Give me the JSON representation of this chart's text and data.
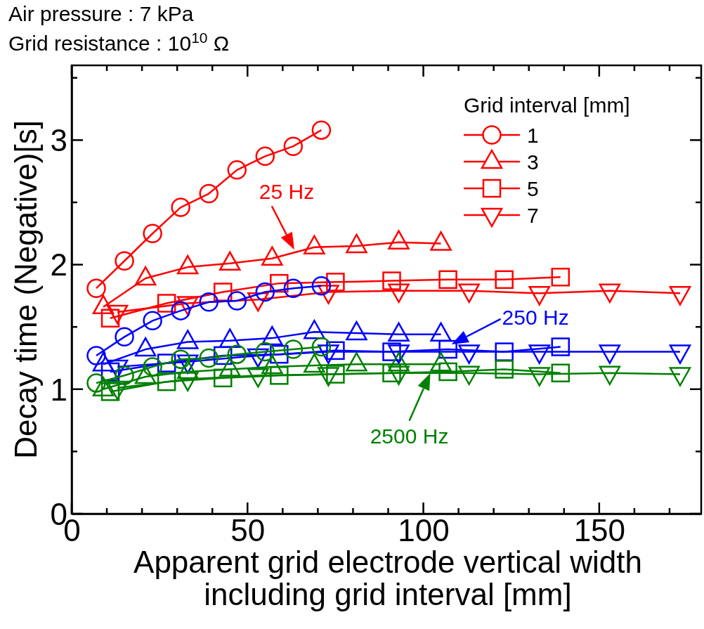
{
  "chart_data": {
    "type": "line",
    "title": "Air pressure : 7 kPa",
    "subtitle": "Grid resistance : 10$^{10}$ Ω",
    "xlabel": "Apparent grid electrode vertical width\nincluding grid interval [mm]",
    "ylabel": "Decay time (Negative)[s]",
    "legend_title": "Grid interval [mm]",
    "legend": "top right",
    "grid": false,
    "xlim": [
      0,
      179
    ],
    "ylim": [
      0,
      3.6
    ],
    "xticks": [
      0,
      {
        "value": 10,
        "label": null
      },
      {
        "value": 20,
        "label": null
      },
      {
        "value": 30,
        "label": null
      },
      {
        "value": 40,
        "label": null
      },
      50,
      {
        "value": 60,
        "label": null
      },
      {
        "value": 70,
        "label": null
      },
      {
        "value": 80,
        "label": null
      },
      {
        "value": 90,
        "label": null
      },
      100,
      {
        "value": 110,
        "label": null
      },
      {
        "value": 120,
        "label": null
      },
      {
        "value": 130,
        "label": null
      },
      {
        "value": 140,
        "label": null
      },
      150,
      {
        "value": 160,
        "label": null
      },
      {
        "value": 170,
        "label": null
      }
    ],
    "yticks": [
      0,
      {
        "value": 0.5,
        "label": null
      },
      1,
      {
        "value": 1.5,
        "label": null
      },
      2,
      {
        "value": 2.5,
        "label": null
      },
      3,
      {
        "value": 3.5,
        "label": null
      }
    ],
    "annotations": [
      {
        "text": "25 Hz",
        "x": 63.3,
        "y": 2.12
      },
      {
        "text": "250 Hz",
        "x": 108,
        "y": 1.36
      },
      {
        "text": "2500 Hz",
        "x": 102,
        "y": 1.13
      }
    ],
    "series": [
      {
        "name": "1",
        "color": "#ff0000",
        "marker": "circle",
        "x": [
          7,
          15,
          23,
          31,
          39,
          47,
          55,
          63,
          71
        ],
        "values": [
          1.81,
          2.03,
          2.25,
          2.46,
          2.57,
          2.76,
          2.87,
          2.95,
          3.08
        ]
      },
      {
        "name": "3",
        "color": "#ff0000",
        "marker": "triangle",
        "x": [
          9,
          21,
          33,
          45,
          57,
          69,
          81,
          93,
          105
        ],
        "values": [
          1.66,
          1.89,
          1.98,
          2.01,
          2.05,
          2.14,
          2.15,
          2.18,
          2.17
        ]
      },
      {
        "name": "5",
        "color": "#ff0000",
        "marker": "square",
        "x": [
          11,
          27,
          43,
          59,
          75,
          91,
          107,
          123,
          139
        ],
        "values": [
          1.57,
          1.69,
          1.78,
          1.85,
          1.86,
          1.87,
          1.88,
          1.88,
          1.9
        ]
      },
      {
        "name": "7",
        "color": "#ff0000",
        "marker": "triangle-down",
        "x": [
          13,
          33,
          53,
          73,
          93,
          113,
          133,
          153,
          173
        ],
        "values": [
          1.62,
          1.69,
          1.72,
          1.78,
          1.79,
          1.79,
          1.77,
          1.79,
          1.77
        ]
      },
      {
        "color": "#0000ff",
        "marker": "circle",
        "x": [
          7,
          15,
          23,
          31,
          39,
          47,
          55,
          63,
          71
        ],
        "values": [
          1.27,
          1.42,
          1.55,
          1.63,
          1.7,
          1.71,
          1.78,
          1.81,
          1.83
        ]
      },
      {
        "color": "#0000ff",
        "marker": "triangle",
        "x": [
          9,
          21,
          33,
          45,
          57,
          69,
          81,
          93,
          105
        ],
        "values": [
          1.2,
          1.32,
          1.38,
          1.39,
          1.41,
          1.46,
          1.45,
          1.44,
          1.44
        ]
      },
      {
        "color": "#0000ff",
        "marker": "square",
        "x": [
          11,
          27,
          43,
          59,
          75,
          91,
          107,
          123,
          139
        ],
        "values": [
          1.14,
          1.21,
          1.27,
          1.28,
          1.31,
          1.3,
          1.32,
          1.3,
          1.34
        ]
      },
      {
        "color": "#0000ff",
        "marker": "triangle-down",
        "x": [
          13,
          33,
          53,
          73,
          93,
          113,
          133,
          153,
          173
        ],
        "values": [
          1.18,
          1.22,
          1.27,
          1.3,
          1.3,
          1.3,
          1.3,
          1.3,
          1.3
        ]
      },
      {
        "color": "#008000",
        "marker": "circle",
        "x": [
          7,
          15,
          23,
          31,
          39,
          47,
          55,
          63,
          71
        ],
        "values": [
          1.05,
          1.11,
          1.18,
          1.24,
          1.25,
          1.28,
          1.3,
          1.32,
          1.34
        ]
      },
      {
        "color": "#008000",
        "marker": "triangle",
        "x": [
          9,
          21,
          33,
          45,
          57,
          69,
          81,
          93,
          105
        ],
        "values": [
          1.0,
          1.1,
          1.14,
          1.16,
          1.18,
          1.19,
          1.2,
          1.2,
          1.2
        ]
      },
      {
        "color": "#008000",
        "marker": "square",
        "x": [
          11,
          27,
          43,
          59,
          75,
          91,
          107,
          123,
          139
        ],
        "values": [
          0.98,
          1.06,
          1.09,
          1.11,
          1.12,
          1.13,
          1.14,
          1.16,
          1.13
        ]
      },
      {
        "color": "#008000",
        "marker": "triangle-down",
        "x": [
          13,
          33,
          53,
          73,
          93,
          113,
          133,
          153,
          173
        ],
        "values": [
          1.01,
          1.08,
          1.11,
          1.12,
          1.13,
          1.13,
          1.12,
          1.13,
          1.12
        ]
      }
    ]
  }
}
